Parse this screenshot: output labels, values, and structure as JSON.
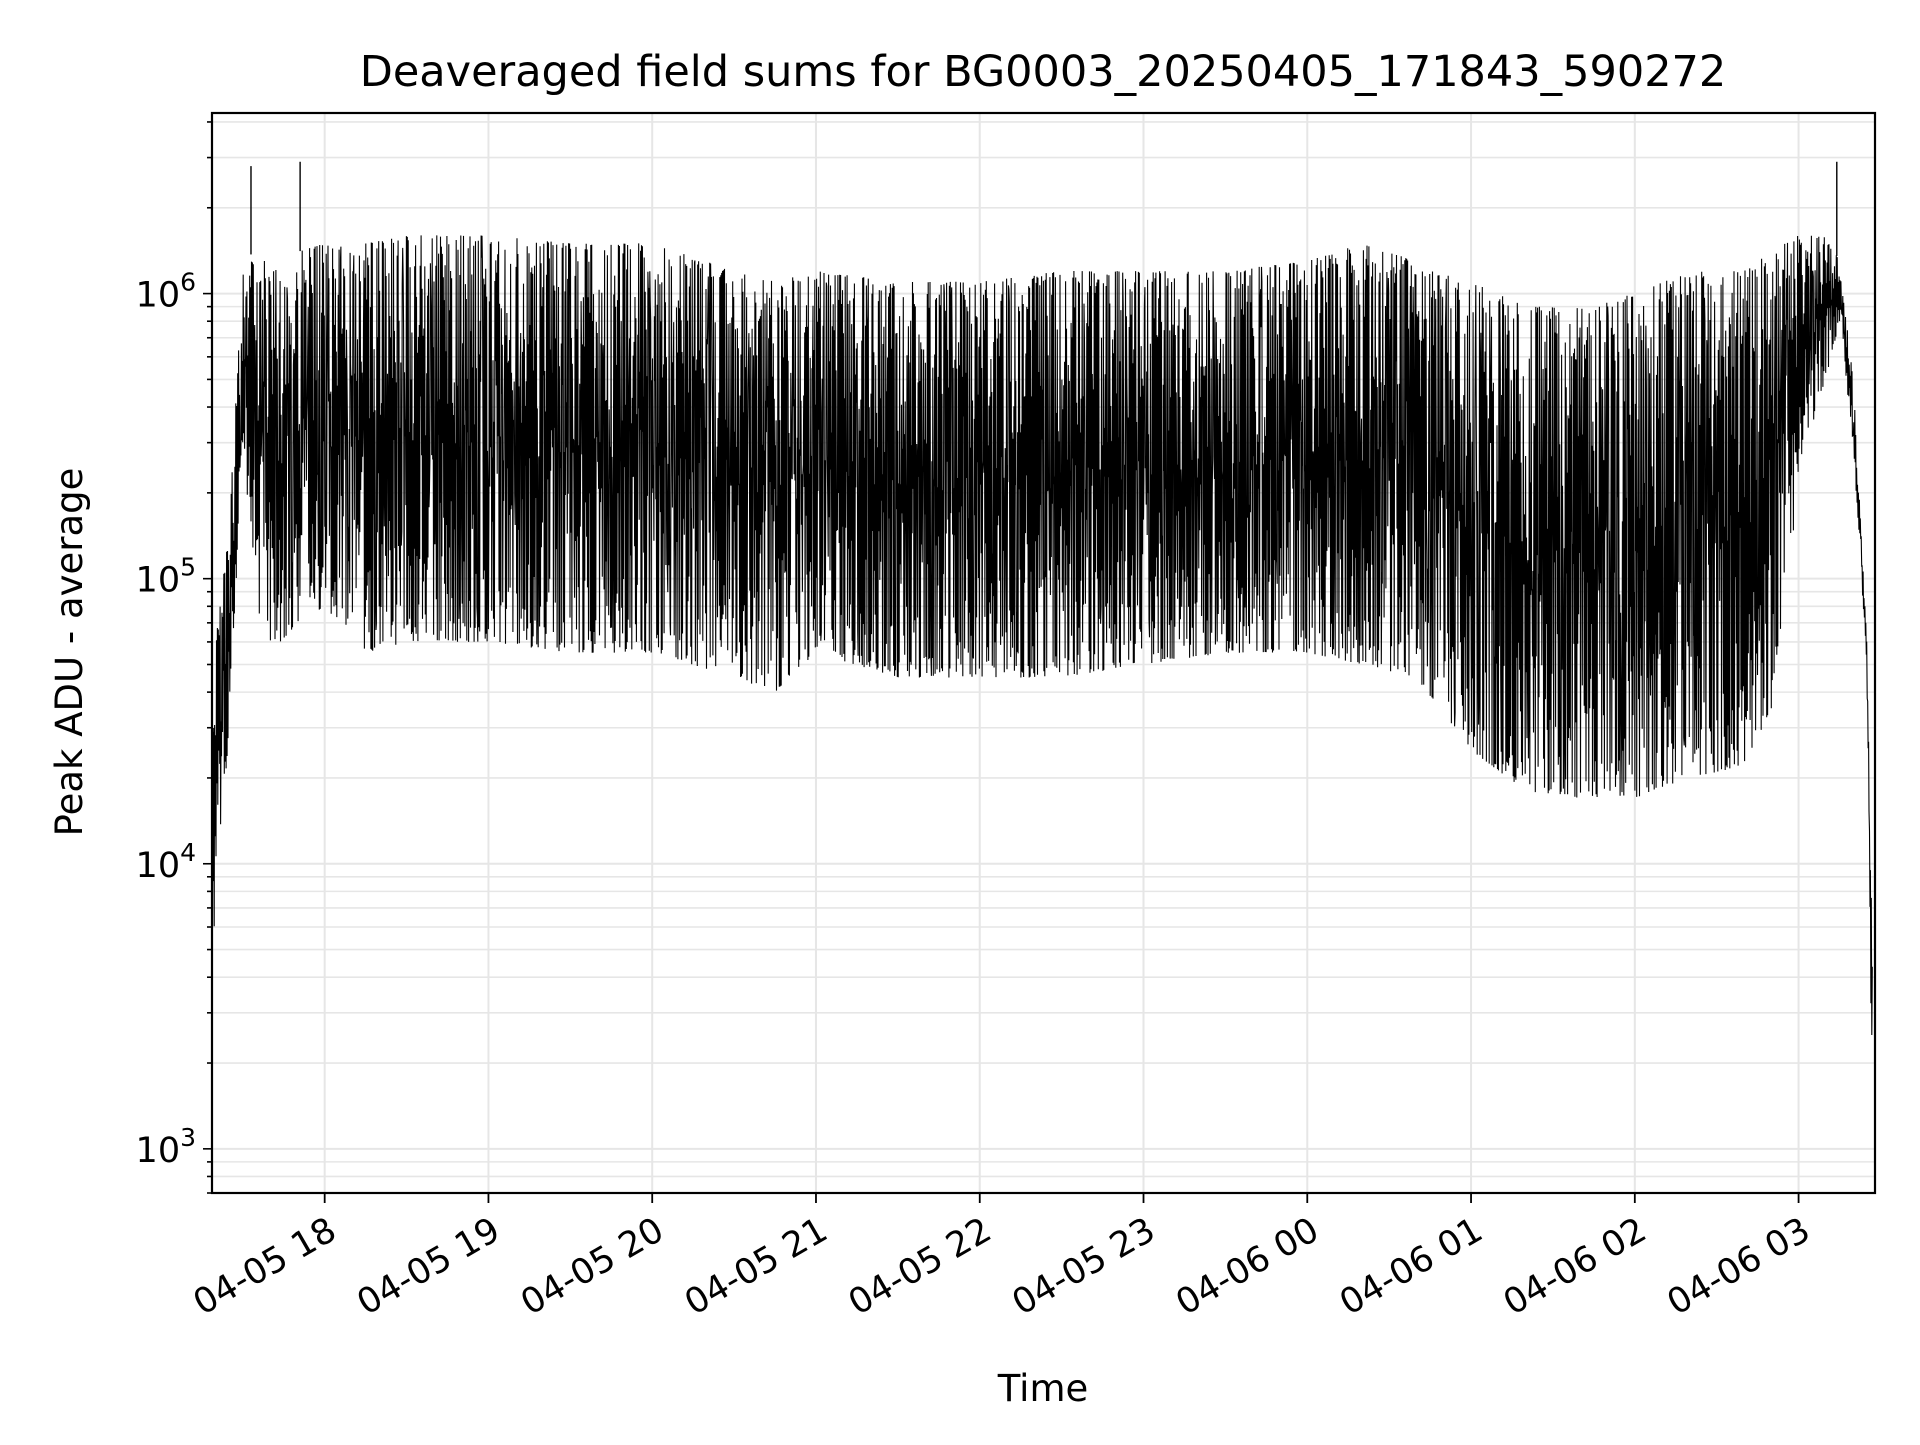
{
  "chart_data": {
    "type": "line",
    "title": "Deaveraged field sums for BG0003_20250405_171843_590272",
    "xlabel": "Time",
    "ylabel": "Peak ADU - average",
    "y_scale": "log",
    "ylim": [
      700,
      4300000
    ],
    "xlim": [
      "2025-04-05 17:18:43",
      "2025-04-06 03:28:00"
    ],
    "grid": true,
    "legend": "none",
    "line_color": "#000000",
    "x_ticks": [
      {
        "label": "04-05 18",
        "t": "2025-04-05 18:00"
      },
      {
        "label": "04-05 19",
        "t": "2025-04-05 19:00"
      },
      {
        "label": "04-05 20",
        "t": "2025-04-05 20:00"
      },
      {
        "label": "04-05 21",
        "t": "2025-04-05 21:00"
      },
      {
        "label": "04-05 22",
        "t": "2025-04-05 22:00"
      },
      {
        "label": "04-05 23",
        "t": "2025-04-05 23:00"
      },
      {
        "label": "04-06 00",
        "t": "2025-04-06 00:00"
      },
      {
        "label": "04-06 01",
        "t": "2025-04-06 01:00"
      },
      {
        "label": "04-06 02",
        "t": "2025-04-06 02:00"
      },
      {
        "label": "04-06 03",
        "t": "2025-04-06 03:00"
      }
    ],
    "y_ticks": [
      {
        "value": 1000,
        "mantissa": "10",
        "exp": "3"
      },
      {
        "value": 10000,
        "mantissa": "10",
        "exp": "4"
      },
      {
        "value": 100000,
        "mantissa": "10",
        "exp": "5"
      },
      {
        "value": 1000000,
        "mantissa": "10",
        "exp": "6"
      }
    ],
    "envelope": {
      "description_free": true,
      "t": [
        "2025-04-05 17:19",
        "2025-04-05 17:25",
        "2025-04-05 17:30",
        "2025-04-05 17:35",
        "2025-04-05 17:40",
        "2025-04-05 17:45",
        "2025-04-05 17:50",
        "2025-04-05 18:00",
        "2025-04-05 18:15",
        "2025-04-05 18:30",
        "2025-04-05 19:00",
        "2025-04-05 19:30",
        "2025-04-05 20:00",
        "2025-04-05 20:30",
        "2025-04-05 20:45",
        "2025-04-05 21:00",
        "2025-04-05 21:30",
        "2025-04-05 22:00",
        "2025-04-05 22:30",
        "2025-04-05 23:00",
        "2025-04-05 23:30",
        "2025-04-06 00:00",
        "2025-04-06 00:20",
        "2025-04-06 00:40",
        "2025-04-06 01:00",
        "2025-04-06 01:20",
        "2025-04-06 01:40",
        "2025-04-06 02:00",
        "2025-04-06 02:20",
        "2025-04-06 02:40",
        "2025-04-06 02:50",
        "2025-04-06 03:00",
        "2025-04-06 03:10",
        "2025-04-06 03:15",
        "2025-04-06 03:20",
        "2025-04-06 03:25",
        "2025-04-06 03:27"
      ],
      "high": [
        50000,
        150000,
        1200000,
        1500000,
        1200000,
        1300000,
        1400000,
        1500000,
        1500000,
        1600000,
        1600000,
        1500000,
        1500000,
        1200000,
        1100000,
        1200000,
        1100000,
        1100000,
        1200000,
        1200000,
        1200000,
        1300000,
        1500000,
        1300000,
        1100000,
        900000,
        900000,
        1000000,
        1200000,
        1200000,
        1400000,
        1600000,
        1600000,
        1300000,
        500000,
        60000,
        5000
      ],
      "low": [
        5000,
        30000,
        300000,
        80000,
        60000,
        60000,
        70000,
        80000,
        55000,
        60000,
        60000,
        55000,
        55000,
        45000,
        40000,
        55000,
        45000,
        45000,
        45000,
        50000,
        55000,
        55000,
        50000,
        45000,
        25000,
        18000,
        17000,
        17000,
        20000,
        22000,
        35000,
        200000,
        500000,
        800000,
        300000,
        50000,
        1000
      ]
    },
    "spikes": [
      {
        "t": "2025-04-05 17:33",
        "value": 2800000
      },
      {
        "t": "2025-04-05 17:51",
        "value": 2900000
      },
      {
        "t": "2025-04-06 03:14",
        "value": 2900000
      }
    ]
  }
}
